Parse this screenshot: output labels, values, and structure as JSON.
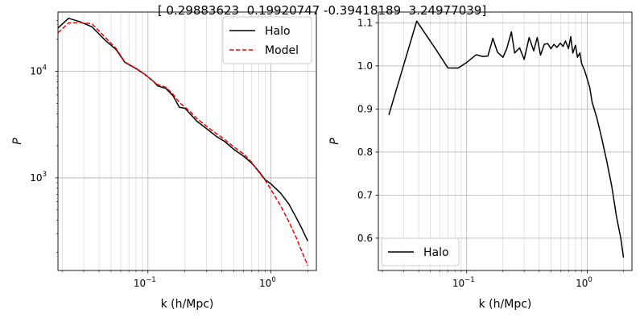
{
  "figure": {
    "suptitle": "[ 0.29883623  0.19920747 -0.39418189  3.24977039]"
  },
  "chart_data": [
    {
      "type": "line",
      "xscale": "log",
      "yscale": "log",
      "xlabel": "k (h/Mpc)",
      "ylabel": "P",
      "xlim": [
        0.0185,
        2.35
      ],
      "ylim": [
        135,
        36000
      ],
      "x_ticks": [
        {
          "value": 0.1,
          "base": "10",
          "exp": "−1"
        },
        {
          "value": 1,
          "base": "10",
          "exp": "0"
        }
      ],
      "y_ticks": [
        {
          "value": 1000,
          "base": "10",
          "exp": "3"
        },
        {
          "value": 10000,
          "base": "10",
          "exp": "4"
        }
      ],
      "grid": true,
      "legend": "top-right",
      "series": [
        {
          "name": "Halo",
          "color": "#000000",
          "dash": "solid",
          "points": [
            [
              0.0185,
              25500
            ],
            [
              0.0226,
              31500
            ],
            [
              0.028,
              29200
            ],
            [
              0.035,
              26200
            ],
            [
              0.045,
              19500
            ],
            [
              0.055,
              16000
            ],
            [
              0.065,
              12100
            ],
            [
              0.08,
              10600
            ],
            [
              0.095,
              9300
            ],
            [
              0.11,
              8100
            ],
            [
              0.12,
              7300
            ],
            [
              0.14,
              6900
            ],
            [
              0.16,
              5900
            ],
            [
              0.18,
              4600
            ],
            [
              0.2,
              4500
            ],
            [
              0.22,
              4000
            ],
            [
              0.25,
              3400
            ],
            [
              0.3,
              2900
            ],
            [
              0.36,
              2450
            ],
            [
              0.42,
              2200
            ],
            [
              0.5,
              1850
            ],
            [
              0.6,
              1600
            ],
            [
              0.7,
              1370
            ],
            [
              0.8,
              1150
            ],
            [
              0.9,
              960
            ],
            [
              1.0,
              880
            ],
            [
              1.2,
              720
            ],
            [
              1.4,
              570
            ],
            [
              1.6,
              430
            ],
            [
              1.8,
              330
            ],
            [
              2.0,
              255
            ]
          ]
        },
        {
          "name": "Model",
          "color": "#ff0000",
          "dash": "dashed",
          "points": [
            [
              0.0185,
              23000
            ],
            [
              0.0226,
              28500
            ],
            [
              0.028,
              28700
            ],
            [
              0.035,
              28000
            ],
            [
              0.045,
              20800
            ],
            [
              0.055,
              16400
            ],
            [
              0.065,
              12200
            ],
            [
              0.08,
              10700
            ],
            [
              0.095,
              9300
            ],
            [
              0.11,
              8100
            ],
            [
              0.12,
              7500
            ],
            [
              0.14,
              7100
            ],
            [
              0.16,
              6100
            ],
            [
              0.18,
              5100
            ],
            [
              0.2,
              4600
            ],
            [
              0.22,
              4200
            ],
            [
              0.25,
              3600
            ],
            [
              0.3,
              3050
            ],
            [
              0.36,
              2600
            ],
            [
              0.42,
              2300
            ],
            [
              0.5,
              1950
            ],
            [
              0.6,
              1680
            ],
            [
              0.7,
              1400
            ],
            [
              0.8,
              1130
            ],
            [
              0.9,
              950
            ],
            [
              1.0,
              780
            ],
            [
              1.2,
              550
            ],
            [
              1.4,
              390
            ],
            [
              1.6,
              280
            ],
            [
              1.8,
              200
            ],
            [
              2.0,
              150
            ]
          ]
        }
      ]
    },
    {
      "type": "line",
      "xscale": "log",
      "yscale": "linear",
      "xlabel": "k (h/Mpc)",
      "ylabel": "P",
      "xlim": [
        0.0185,
        2.35
      ],
      "ylim": [
        0.525,
        1.125
      ],
      "x_ticks": [
        {
          "value": 0.1,
          "base": "10",
          "exp": "−1"
        },
        {
          "value": 1,
          "base": "10",
          "exp": "0"
        }
      ],
      "y_ticks": [
        "0.6",
        "0.7",
        "0.8",
        "0.9",
        "1.0",
        "1.1"
      ],
      "grid": true,
      "legend": "bottom-left",
      "series": [
        {
          "name": "Halo",
          "color": "#000000",
          "dash": "solid",
          "points": [
            [
              0.0226,
              0.886
            ],
            [
              0.0385,
              1.104
            ],
            [
              0.055,
              1.04
            ],
            [
              0.07,
              0.995
            ],
            [
              0.085,
              0.995
            ],
            [
              0.1,
              1.008
            ],
            [
              0.12,
              1.026
            ],
            [
              0.135,
              1.022
            ],
            [
              0.15,
              1.023
            ],
            [
              0.165,
              1.064
            ],
            [
              0.18,
              1.032
            ],
            [
              0.2,
              1.02
            ],
            [
              0.215,
              1.04
            ],
            [
              0.235,
              1.079
            ],
            [
              0.25,
              1.03
            ],
            [
              0.275,
              1.042
            ],
            [
              0.3,
              1.015
            ],
            [
              0.33,
              1.066
            ],
            [
              0.36,
              1.035
            ],
            [
              0.385,
              1.066
            ],
            [
              0.41,
              1.025
            ],
            [
              0.44,
              1.05
            ],
            [
              0.47,
              1.052
            ],
            [
              0.5,
              1.04
            ],
            [
              0.53,
              1.05
            ],
            [
              0.56,
              1.043
            ],
            [
              0.6,
              1.053
            ],
            [
              0.63,
              1.045
            ],
            [
              0.66,
              1.058
            ],
            [
              0.7,
              1.04
            ],
            [
              0.73,
              1.068
            ],
            [
              0.76,
              1.03
            ],
            [
              0.8,
              1.048
            ],
            [
              0.83,
              1.02
            ],
            [
              0.87,
              1.03
            ],
            [
              0.9,
              1.005
            ],
            [
              0.95,
              0.99
            ],
            [
              1.0,
              0.97
            ],
            [
              1.05,
              0.95
            ],
            [
              1.1,
              0.915
            ],
            [
              1.2,
              0.88
            ],
            [
              1.3,
              0.84
            ],
            [
              1.45,
              0.78
            ],
            [
              1.6,
              0.72
            ],
            [
              1.75,
              0.65
            ],
            [
              1.9,
              0.6
            ],
            [
              2.0,
              0.555
            ]
          ]
        }
      ]
    }
  ]
}
